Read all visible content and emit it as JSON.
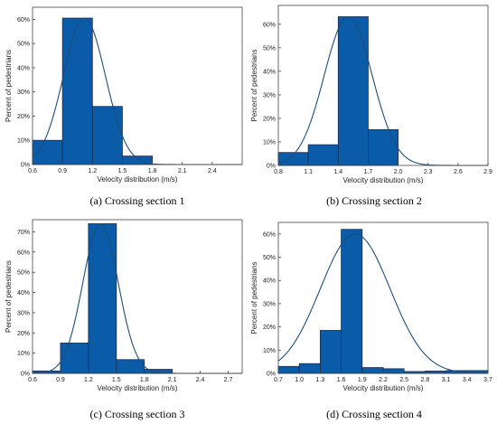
{
  "chart_data": [
    {
      "type": "bar",
      "caption": "(a) Crossing section 1",
      "xlabel": "Velocity distribution (m/s)",
      "ylabel": "Percent of pedestrians",
      "xlim": [
        0.6,
        2.7
      ],
      "ylim": [
        0,
        0.65
      ],
      "x_ticks": [
        "0.6",
        "0.9",
        "1.2",
        "1.5",
        "1.8",
        "2.1",
        "2.4"
      ],
      "x_tick_values": [
        0.6,
        0.9,
        1.2,
        1.5,
        1.8,
        2.1,
        2.4
      ],
      "y_ticks": [
        "0%",
        "10%",
        "20%",
        "30%",
        "40%",
        "50%",
        "60%"
      ],
      "y_tick_values": [
        0,
        0.1,
        0.2,
        0.3,
        0.4,
        0.5,
        0.6
      ],
      "bins": [
        [
          0.6,
          0.9
        ],
        [
          0.9,
          1.2
        ],
        [
          1.2,
          1.5
        ],
        [
          1.5,
          1.8
        ]
      ],
      "values": [
        0.1,
        0.605,
        0.24,
        0.035
      ],
      "fit": {
        "mean": 1.12,
        "sd": 0.21,
        "peak": 0.605
      }
    },
    {
      "type": "bar",
      "caption": "(b) Crossing section 2",
      "xlabel": "Velocity distribution (m/s)",
      "ylabel": "Percent of pedestrians",
      "xlim": [
        0.8,
        2.9
      ],
      "ylim": [
        0,
        0.68
      ],
      "x_ticks": [
        "0.8",
        "1.1",
        "1.4",
        "1.7",
        "2.0",
        "2.3",
        "2.6",
        "2.9"
      ],
      "x_tick_values": [
        0.8,
        1.1,
        1.4,
        1.7,
        2.0,
        2.3,
        2.6,
        2.9
      ],
      "y_ticks": [
        "0%",
        "10%",
        "20%",
        "30%",
        "40%",
        "50%",
        "60%"
      ],
      "y_tick_values": [
        0,
        0.1,
        0.2,
        0.3,
        0.4,
        0.5,
        0.6
      ],
      "bins": [
        [
          0.8,
          1.1
        ],
        [
          1.1,
          1.4
        ],
        [
          1.4,
          1.7
        ],
        [
          1.7,
          2.0
        ]
      ],
      "values": [
        0.055,
        0.088,
        0.632,
        0.152
      ],
      "fit": {
        "mean": 1.5,
        "sd": 0.24,
        "peak": 0.632
      }
    },
    {
      "type": "bar",
      "caption": "(c) Crossing section 3",
      "xlabel": "Velocity distribution (m/s)",
      "ylabel": "Percent of pedestrians",
      "xlim": [
        0.6,
        2.85
      ],
      "ylim": [
        0,
        0.76
      ],
      "x_ticks": [
        "0.6",
        "0.9",
        "1.2",
        "1.5",
        "1.8",
        "2.1",
        "2.4",
        "2.7"
      ],
      "x_tick_values": [
        0.6,
        0.9,
        1.2,
        1.5,
        1.8,
        2.1,
        2.4,
        2.7
      ],
      "y_ticks": [
        "0%",
        "10%",
        "20%",
        "30%",
        "40%",
        "50%",
        "60%",
        "70%"
      ],
      "y_tick_values": [
        0,
        0.1,
        0.2,
        0.3,
        0.4,
        0.5,
        0.6,
        0.7
      ],
      "bins": [
        [
          0.6,
          0.9
        ],
        [
          0.9,
          1.2
        ],
        [
          1.2,
          1.5
        ],
        [
          1.5,
          1.8
        ],
        [
          1.8,
          2.1
        ]
      ],
      "values": [
        0.012,
        0.15,
        0.74,
        0.068,
        0.02
      ],
      "fit": {
        "mean": 1.33,
        "sd": 0.19,
        "peak": 0.74
      }
    },
    {
      "type": "bar",
      "caption": "(d) Crossing section 4",
      "xlabel": "Velocity distribution (m/s)",
      "ylabel": "Percent of pedestrians",
      "xlim": [
        0.7,
        3.7
      ],
      "ylim": [
        0,
        0.65
      ],
      "x_ticks": [
        "0.7",
        "1.0",
        "1.3",
        "1.6",
        "1.9",
        "2.2",
        "2.5",
        "2.8",
        "3.1",
        "3.4",
        "3.7"
      ],
      "x_tick_values": [
        0.7,
        1.0,
        1.3,
        1.6,
        1.9,
        2.2,
        2.5,
        2.8,
        3.1,
        3.4,
        3.7
      ],
      "y_ticks": [
        "0%",
        "10%",
        "20%",
        "30%",
        "40%",
        "50%",
        "60%"
      ],
      "y_tick_values": [
        0,
        0.1,
        0.2,
        0.3,
        0.4,
        0.5,
        0.6
      ],
      "bins": [
        [
          0.7,
          1.0
        ],
        [
          1.0,
          1.3
        ],
        [
          1.3,
          1.6
        ],
        [
          1.6,
          1.9
        ],
        [
          1.9,
          2.2
        ],
        [
          2.2,
          2.5
        ],
        [
          2.5,
          2.8
        ],
        [
          2.8,
          3.1
        ],
        [
          3.1,
          3.4
        ],
        [
          3.4,
          3.7
        ]
      ],
      "values": [
        0.03,
        0.042,
        0.185,
        0.62,
        0.025,
        0.02,
        0.008,
        0.01,
        0.012,
        0.012
      ],
      "fit": {
        "mean": 1.8,
        "sd": 0.5,
        "peak": 0.6
      }
    }
  ]
}
